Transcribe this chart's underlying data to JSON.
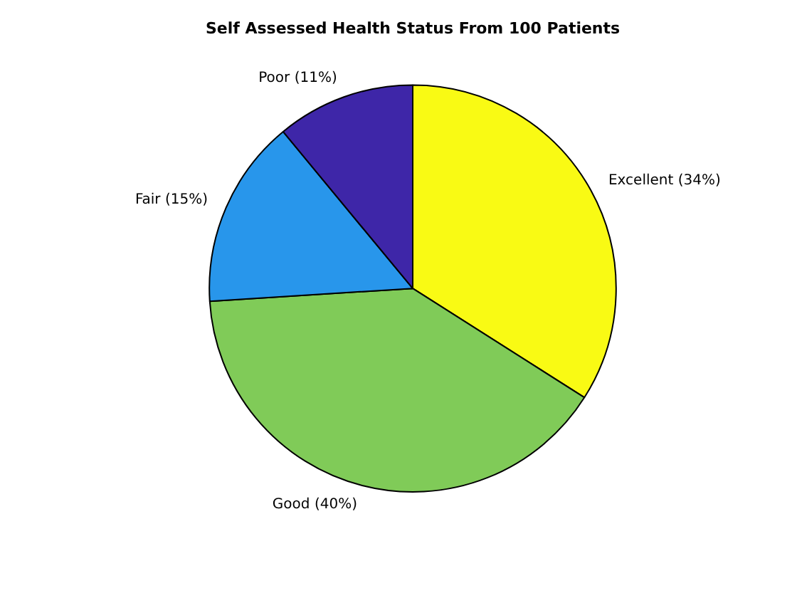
{
  "chart_data": {
    "type": "pie",
    "title": "Self Assessed Health Status From 100 Patients",
    "categories": [
      "Excellent (34%)",
      "Good (40%)",
      "Fair (15%)",
      "Poor (11%)"
    ],
    "values": [
      34,
      40,
      15,
      11
    ],
    "colors": [
      "#f9fa14",
      "#80cb58",
      "#2896eb",
      "#3e26a8"
    ],
    "legend": false
  }
}
